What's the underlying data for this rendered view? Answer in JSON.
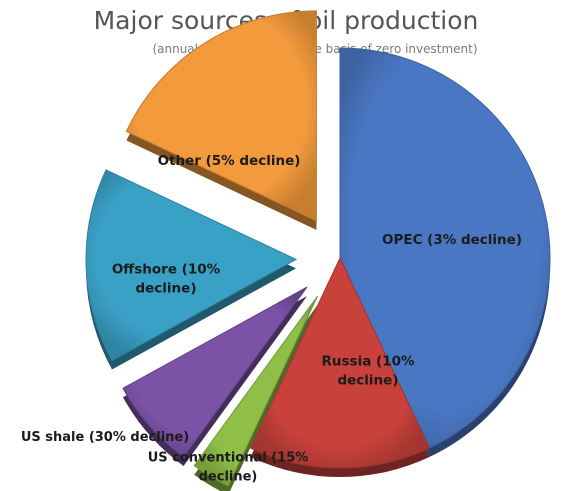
{
  "chart_data": {
    "type": "pie",
    "title": "Major sources of oil production",
    "subtitle": "(annual decline rates on the basis of zero investment)",
    "slices": [
      {
        "label": "OPEC (3% decline)",
        "value": 43,
        "color": "#4a77c4",
        "exploded": false,
        "label_lines": [
          "OPEC (3% decline)"
        ]
      },
      {
        "label": "Russia (10% decline)",
        "value": 14,
        "color": "#c8413b",
        "exploded": false,
        "label_lines": [
          "Russia (10%",
          "decline)"
        ]
      },
      {
        "label": "US conventional (15% decline)",
        "value": 3,
        "color": "#8fbf47",
        "exploded": true,
        "label_lines": [
          "US conventional (15%",
          "decline)"
        ]
      },
      {
        "label": "US shale (30% decline)",
        "value": 7,
        "color": "#7a52a6",
        "exploded": true,
        "label_lines": [
          "US shale (30% decline)"
        ]
      },
      {
        "label": "Offshore (10% decline)",
        "value": 15,
        "color": "#3aa1c6",
        "exploded": true,
        "label_lines": [
          "Offshore (10%",
          "decline)"
        ]
      },
      {
        "label": "Other (5% decline)",
        "value": 18,
        "color": "#f39a3c",
        "exploded": true,
        "label_lines": [
          "Other (5% decline)"
        ]
      }
    ],
    "start_angle_deg": 270,
    "direction": "clockwise"
  }
}
